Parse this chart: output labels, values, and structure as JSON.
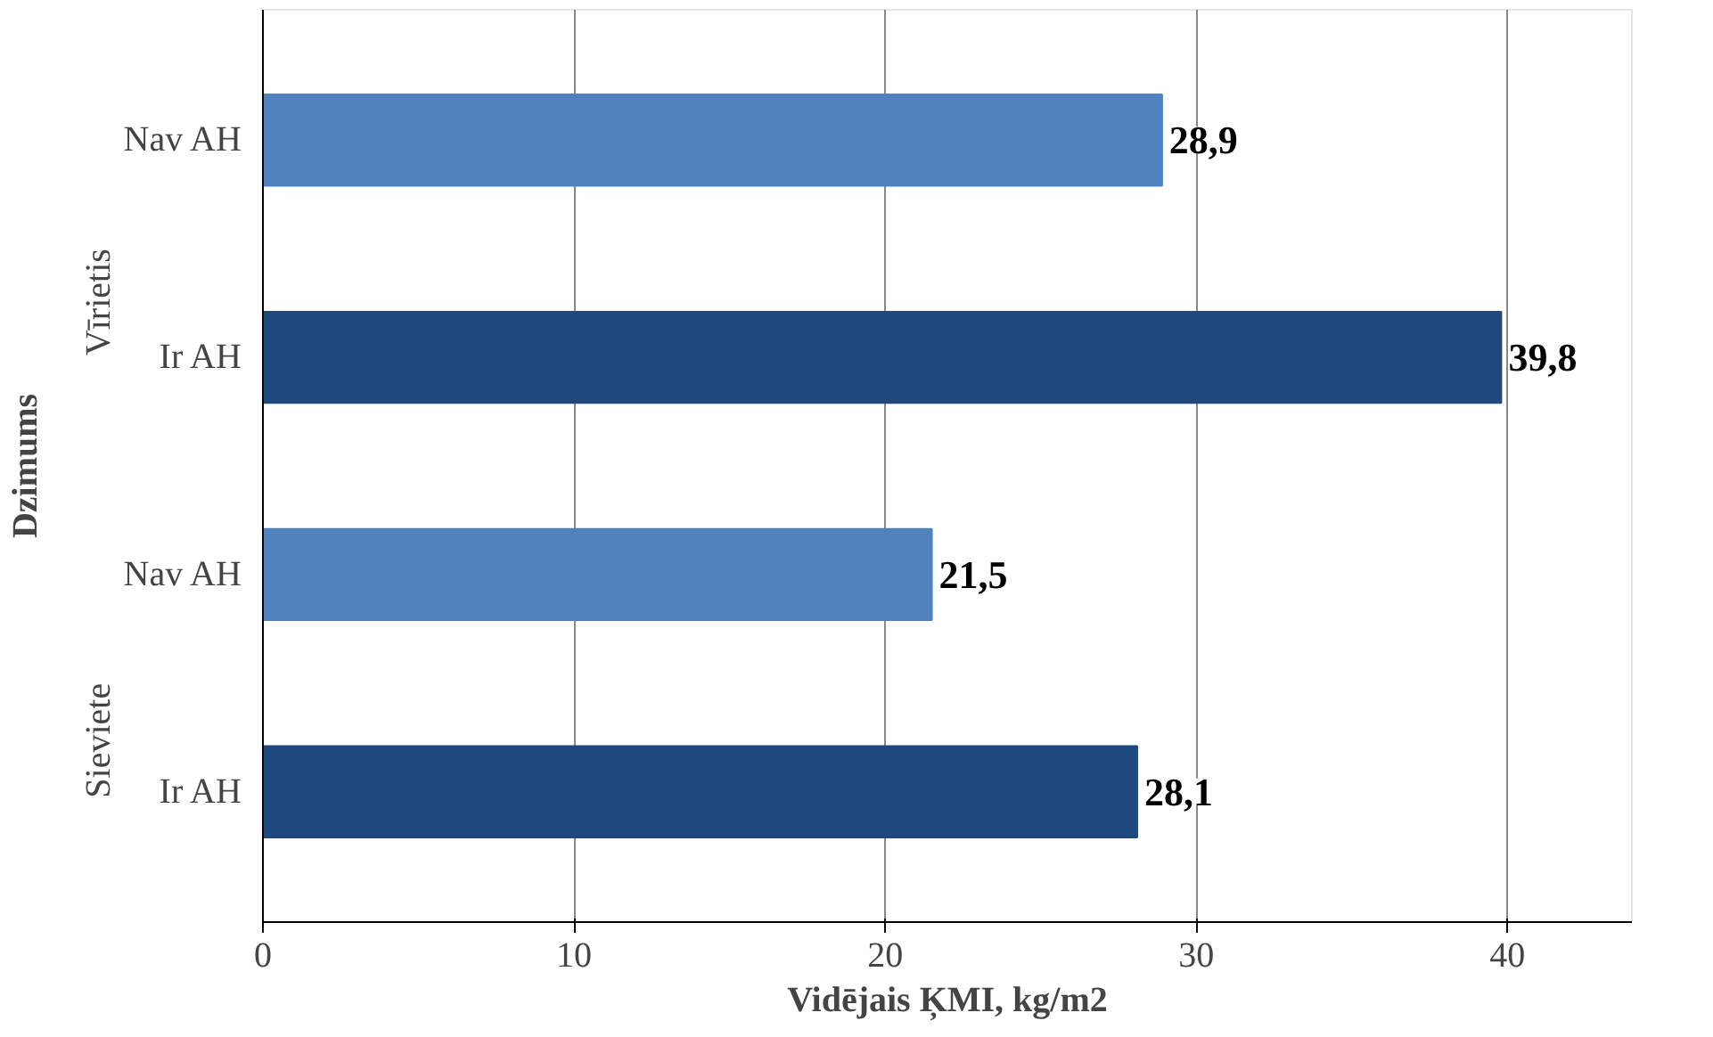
{
  "chart_data": {
    "type": "bar",
    "orientation": "horizontal",
    "xlabel": "Vidējais ĶMI, kg/m2",
    "ylabel": "Dzimums",
    "categories": [
      "Nav AH",
      "Ir AH",
      "Nav AH",
      "Ir AH"
    ],
    "values": [
      28.9,
      39.8,
      21.5,
      28.1
    ],
    "colors": [
      "#4f81bd",
      "#1f497d",
      "#4f81bd",
      "#1f497d"
    ],
    "value_labels": [
      "28,9",
      "39,8",
      "21,5",
      "28,1"
    ],
    "annotations": [
      "Vīrietis",
      "Sieviete"
    ],
    "xlim": [
      0,
      44
    ],
    "xticks": [
      0,
      10,
      20,
      30,
      40
    ],
    "grid": "x"
  }
}
